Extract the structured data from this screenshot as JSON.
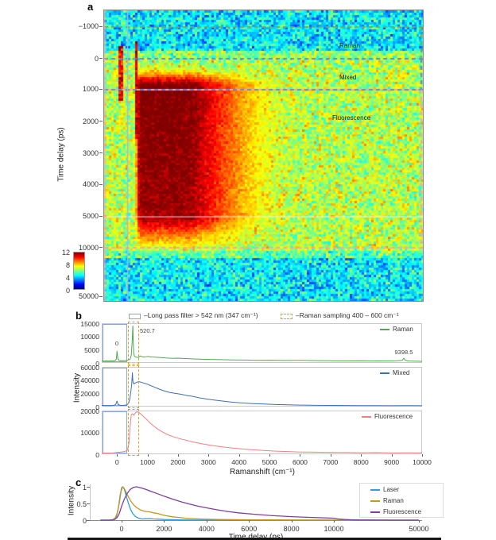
{
  "panels": {
    "a": {
      "label": "a",
      "ylabel": "Time delay (ps)",
      "region_labels": [
        "Raman",
        "Mixed",
        "Fluorescence"
      ],
      "yticks": [
        {
          "label": "−1000",
          "f": 0.057
        },
        {
          "label": "0",
          "f": 0.167
        },
        {
          "label": "1000",
          "f": 0.273
        },
        {
          "label": "2000",
          "f": 0.383
        },
        {
          "label": "3000",
          "f": 0.492
        },
        {
          "label": "4000",
          "f": 0.601
        },
        {
          "label": "5000",
          "f": 0.71
        },
        {
          "label": "10000",
          "f": 0.817
        },
        {
          "label": "50000",
          "f": 0.985
        }
      ],
      "colorbar_ticks": [
        "12",
        "8",
        "4",
        "0"
      ]
    },
    "b": {
      "label": "b",
      "ylabel": "Intensity",
      "xlabel": "Ramanshift (cm⁻¹)",
      "legend": {
        "longpass": "–Long pass filter > 542 nm (347 cm⁻¹)",
        "raman_sampling": "–Raman sampling 400 – 600 cm⁻¹"
      },
      "subplot_yticks": [
        [
          "15000",
          "10000",
          "5000",
          "0"
        ],
        [
          "60000",
          "40000",
          "20000",
          "0"
        ],
        [
          "20000",
          "10000",
          "0"
        ]
      ],
      "xticks": [
        {
          "label": "0",
          "v": 0
        },
        {
          "label": "1000",
          "v": 1000
        },
        {
          "label": "2000",
          "v": 2000
        },
        {
          "label": "3000",
          "v": 3000
        },
        {
          "label": "4000",
          "v": 4000
        },
        {
          "label": "5000",
          "v": 5000
        },
        {
          "label": "6000",
          "v": 6000
        },
        {
          "label": "7000",
          "v": 7000
        },
        {
          "label": "8000",
          "v": 8000
        },
        {
          "label": "9000",
          "v": 9000
        },
        {
          "label": "10000",
          "v": 10000
        }
      ]
    },
    "c": {
      "label": "c",
      "ylabel": "Intensity",
      "xlabel": "Time delay (ps)",
      "yticks": [
        {
          "label": "1",
          "f": 0
        },
        {
          "label": "0.5",
          "f": 0.5
        },
        {
          "label": "0",
          "f": 1
        }
      ],
      "xticks": [
        {
          "label": "0",
          "v": 0
        },
        {
          "label": "2000",
          "v": 2000
        },
        {
          "label": "4000",
          "v": 4000
        },
        {
          "label": "6000",
          "v": 6000
        },
        {
          "label": "8000",
          "v": 8000
        },
        {
          "label": "10000",
          "v": 10000
        },
        {
          "label": "50000",
          "v": 50000
        }
      ]
    }
  },
  "colors": {
    "raman_green": "#4faa54",
    "mixed_blue": "#3d6fb6",
    "fluor_salmon": "#f08080",
    "laser_blue": "#2b9fe0",
    "raman_gold": "#c7951d",
    "fluor_purple": "#7d3fa0",
    "longpass_box": "#8aa5de",
    "sampling_box": "#d4a22e",
    "dash_green": "#7fa364",
    "dash_blue": "#6f87c9",
    "dash_pink": "#f2a8a8",
    "lavender_line": "#a9b6e2",
    "leftedge_pink": "#e8aab4"
  },
  "chart_data": [
    {
      "type": "heatmap",
      "xlabel_implied": "Ramanshift (cm⁻¹)",
      "ylabel": "Time delay (ps)",
      "x_range": [
        -500,
        10000
      ],
      "ytick_values": [
        -1000,
        0,
        1000,
        2000,
        3000,
        4000,
        5000,
        10000,
        50000
      ],
      "colorbar": {
        "min": 0,
        "max": 12,
        "ticks": [
          0,
          4,
          8,
          12
        ],
        "colormap": "jet"
      },
      "region_labels": [
        "Raman",
        "Mixed",
        "Fluorescence"
      ],
      "markers": {
        "dashed_hlines_ps": [
          -1000,
          0,
          1000,
          10000
        ],
        "solid_hline_ps": 5000,
        "vline_cm1": 347,
        "region_bounds_ps": {
          "raman": [
            -1000,
            0
          ],
          "mixed": [
            0,
            1000
          ],
          "fluorescence": [
            1000,
            10000
          ]
        }
      }
    },
    {
      "type": "line",
      "xlabel": "Ramanshift (cm⁻¹)",
      "ylabel": "Intensity",
      "x_range": [
        -500,
        10000
      ],
      "ylims": [
        [
          0,
          15000
        ],
        [
          0,
          60000
        ],
        [
          0,
          20000
        ]
      ],
      "overlays": {
        "longpass_region": [
          -500,
          347
        ],
        "raman_sampling_region": [
          400,
          600
        ]
      },
      "annotations": [
        {
          "text": "0",
          "x": 0
        },
        {
          "text": "520.7",
          "x": 520.7
        },
        {
          "text": "9398.5",
          "x": 9398.5
        }
      ],
      "series": [
        {
          "name": "Raman",
          "x": [
            -500,
            -420,
            -350,
            -280,
            -200,
            -130,
            -60,
            -20,
            0,
            30,
            80,
            150,
            250,
            350,
            430,
            470,
            500,
            515,
            521,
            530,
            545,
            570,
            620,
            700,
            760,
            820,
            900,
            1000,
            1100,
            1250,
            1400,
            1600,
            1800,
            2000,
            2300,
            2600,
            3000,
            3400,
            3800,
            4200,
            4600,
            5000,
            5500,
            6000,
            6500,
            7000,
            7500,
            8000,
            8500,
            9000,
            9200,
            9350,
            9400,
            9450,
            9550,
            9700,
            9850,
            10000
          ],
          "y": [
            800,
            650,
            900,
            700,
            850,
            750,
            900,
            1500,
            4500,
            1600,
            800,
            900,
            850,
            1000,
            1400,
            3000,
            9000,
            13800,
            14200,
            9000,
            4000,
            2600,
            2200,
            2100,
            2700,
            2400,
            2200,
            2500,
            2300,
            2200,
            2100,
            1900,
            1750,
            1850,
            1650,
            1500,
            1350,
            1250,
            1150,
            1100,
            1000,
            1050,
            950,
            1000,
            900,
            850,
            800,
            850,
            750,
            800,
            850,
            1000,
            1800,
            1000,
            750,
            700,
            650,
            600
          ]
        },
        {
          "name": "Mixed",
          "x": [
            -500,
            -420,
            -340,
            -260,
            -180,
            -100,
            -40,
            0,
            40,
            120,
            220,
            320,
            380,
            420,
            450,
            480,
            505,
            520,
            535,
            560,
            600,
            650,
            700,
            760,
            830,
            900,
            1000,
            1100,
            1200,
            1350,
            1500,
            1700,
            1900,
            2100,
            2300,
            2500,
            2700,
            2900,
            3100,
            3400,
            3700,
            4000,
            4400,
            4800,
            5200,
            5600,
            6000,
            6500,
            7000,
            7500,
            8000,
            8500,
            9000,
            9500,
            10000
          ],
          "y": [
            1800,
            1500,
            1700,
            1400,
            1600,
            1900,
            3500,
            8500,
            3000,
            1800,
            2000,
            2600,
            5000,
            12000,
            22000,
            33000,
            52000,
            40000,
            36000,
            35000,
            36500,
            37500,
            38500,
            38000,
            37000,
            36000,
            34500,
            32500,
            30500,
            27500,
            25000,
            22000,
            20500,
            19000,
            17000,
            15500,
            13500,
            12000,
            10500,
            8800,
            7200,
            6000,
            4800,
            3900,
            3200,
            2700,
            2300,
            2000,
            1800,
            1700,
            1500,
            1650,
            1400,
            1550,
            1400
          ]
        },
        {
          "name": "Fluorescence",
          "x": [
            -500,
            -400,
            -300,
            -200,
            -100,
            0,
            100,
            200,
            280,
            340,
            390,
            430,
            470,
            510,
            550,
            600,
            650,
            700,
            760,
            830,
            900,
            1000,
            1100,
            1200,
            1350,
            1500,
            1700,
            1900,
            2100,
            2300,
            2500,
            2800,
            3100,
            3400,
            3700,
            4000,
            4400,
            4800,
            5200,
            5600,
            6000,
            6500,
            7000,
            7500,
            8000,
            8500,
            9000,
            9500,
            10000
          ],
          "y": [
            400,
            500,
            550,
            500,
            650,
            800,
            950,
            1150,
            1400,
            1900,
            5000,
            13000,
            18500,
            18800,
            18200,
            19200,
            19800,
            19600,
            19000,
            18200,
            17200,
            15800,
            14400,
            13200,
            11600,
            10300,
            8900,
            7900,
            7100,
            6400,
            5700,
            4800,
            4100,
            3500,
            3000,
            2600,
            2100,
            1750,
            1450,
            1250,
            1050,
            950,
            850,
            800,
            720,
            760,
            660,
            700,
            620
          ]
        }
      ]
    },
    {
      "type": "line",
      "xlabel": "Time delay (ps)",
      "ylabel": "Intensity",
      "ylim": [
        0,
        1
      ],
      "xtick_values": [
        0,
        2000,
        4000,
        6000,
        8000,
        10000,
        50000
      ],
      "series": [
        {
          "name": "Laser",
          "x": [
            -1000,
            -600,
            -450,
            -350,
            -250,
            -150,
            -70,
            0,
            60,
            130,
            220,
            320,
            420,
            520,
            650,
            800,
            950,
            1100,
            1300,
            1500,
            1700,
            2000,
            2400,
            2800,
            3200,
            3600,
            4000,
            5000,
            50000
          ],
          "y": [
            0,
            0,
            0.005,
            0.02,
            0.1,
            0.38,
            0.75,
            0.97,
            1.0,
            0.92,
            0.72,
            0.5,
            0.32,
            0.2,
            0.11,
            0.06,
            0.035,
            0.04,
            0.045,
            0.035,
            0.03,
            0.02,
            0.015,
            0.01,
            0.005,
            0.003,
            0.002,
            0,
            0
          ]
        },
        {
          "name": "Raman",
          "x": [
            -1000,
            -600,
            -500,
            -400,
            -300,
            -200,
            -100,
            -30,
            40,
            110,
            200,
            300,
            420,
            550,
            700,
            850,
            1000,
            1150,
            1300,
            1500,
            1700,
            1900,
            2100,
            2400,
            2700,
            3000,
            3400,
            3800,
            4200,
            4600,
            5000,
            6000,
            7000,
            8000,
            10000,
            50000
          ],
          "y": [
            0,
            0,
            0.005,
            0.02,
            0.07,
            0.22,
            0.55,
            0.85,
            1.0,
            0.96,
            0.85,
            0.72,
            0.58,
            0.47,
            0.38,
            0.32,
            0.28,
            0.26,
            0.25,
            0.22,
            0.2,
            0.16,
            0.13,
            0.1,
            0.08,
            0.06,
            0.045,
            0.033,
            0.026,
            0.02,
            0.017,
            0.01,
            0.007,
            0.005,
            0.003,
            0
          ]
        },
        {
          "name": "Fluorescence",
          "x": [
            -1000,
            -600,
            -450,
            -300,
            -200,
            -100,
            0,
            120,
            260,
            400,
            550,
            700,
            900,
            1100,
            1400,
            1700,
            2000,
            2400,
            2800,
            3200,
            3600,
            4000,
            4500,
            5000,
            5500,
            6000,
            7000,
            8000,
            9000,
            10000,
            12000,
            15000,
            20000,
            30000,
            40000,
            50000
          ],
          "y": [
            0,
            0,
            0.005,
            0.03,
            0.09,
            0.22,
            0.42,
            0.62,
            0.8,
            0.92,
            0.98,
            1.0,
            0.97,
            0.93,
            0.86,
            0.79,
            0.72,
            0.63,
            0.55,
            0.48,
            0.42,
            0.37,
            0.31,
            0.26,
            0.22,
            0.19,
            0.14,
            0.105,
            0.08,
            0.06,
            0.035,
            0.018,
            0.008,
            0.003,
            0.001,
            0
          ]
        }
      ]
    }
  ]
}
